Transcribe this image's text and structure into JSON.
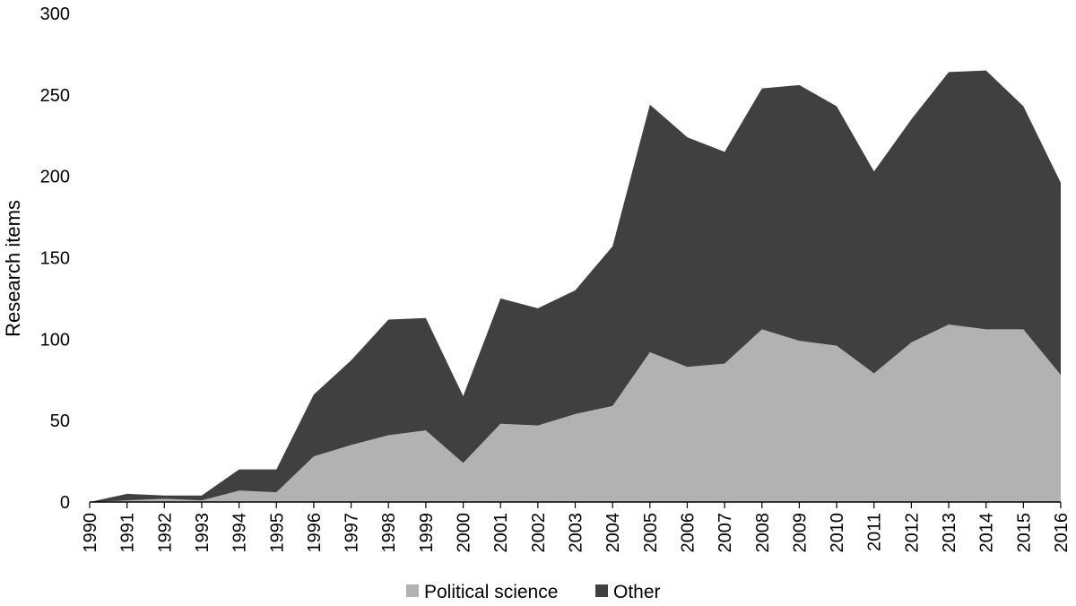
{
  "chart_data": {
    "type": "area",
    "stacked": true,
    "title": "",
    "xlabel": "",
    "ylabel": "Research items",
    "ylim": [
      0,
      300
    ],
    "yticks": [
      0,
      50,
      100,
      150,
      200,
      250,
      300
    ],
    "grid": false,
    "legend_position": "bottom-center",
    "categories": [
      "1990",
      "1991",
      "1992",
      "1993",
      "1994",
      "1995",
      "1996",
      "1997",
      "1998",
      "1999",
      "2000",
      "2001",
      "2002",
      "2003",
      "2004",
      "2005",
      "2006",
      "2007",
      "2008",
      "2009",
      "2010",
      "2011",
      "2012",
      "2013",
      "2014",
      "2015",
      "2016"
    ],
    "series": [
      {
        "name": "Political science",
        "color": "#b2b2b2",
        "values": [
          0,
          1,
          2,
          1,
          7,
          6,
          28,
          35,
          41,
          44,
          24,
          48,
          47,
          54,
          59,
          92,
          83,
          85,
          106,
          99,
          96,
          79,
          98,
          109,
          106,
          106,
          78
        ]
      },
      {
        "name": "Other",
        "color": "#404040",
        "values": [
          0,
          4,
          2,
          3,
          13,
          14,
          38,
          52,
          71,
          69,
          41,
          77,
          72,
          76,
          98,
          152,
          141,
          130,
          148,
          157,
          147,
          124,
          137,
          155,
          159,
          137,
          118
        ]
      }
    ]
  }
}
